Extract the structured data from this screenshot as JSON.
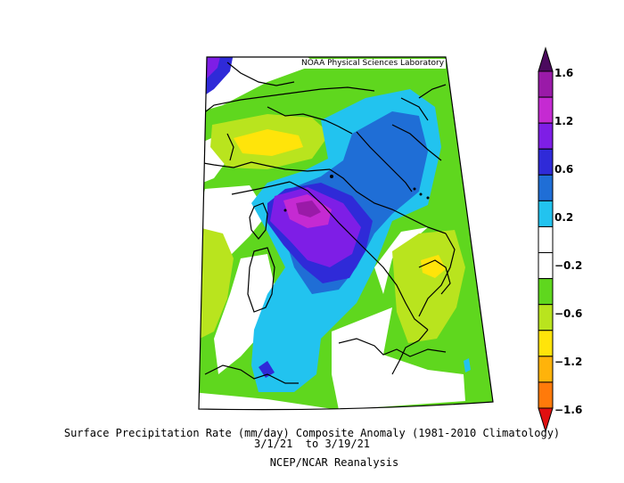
{
  "credit": "NOAA Physical Sciences Laboratory",
  "title": {
    "line1": "Surface Precipitation Rate (mm/day) Composite Anomaly (1981-2010 Climatology)",
    "line2": "3/1/21  to 3/19/21",
    "line3": "NCEP/NCAR Reanalysis"
  },
  "colorbar": {
    "ticks": [
      "1.6",
      "1.2",
      "0.6",
      "0.2",
      "−0.2",
      "−0.6",
      "−1.2",
      "−1.6"
    ],
    "colors": {
      "top_arrow": "#4b0a5e",
      "c1": "#9a1aa8",
      "c2": "#c52ad2",
      "c3": "#7e1ee6",
      "c4": "#2f2ad8",
      "c5": "#1f6ed6",
      "c6": "#22c3ef",
      "c7": "#ffffff",
      "c8": "#ffffff",
      "c9": "#5fd71e",
      "c10": "#b9e41e",
      "c11": "#ffe40a",
      "c12": "#ffb30a",
      "c13": "#ff7a0a",
      "bottom_arrow": "#e01010"
    }
  }
}
